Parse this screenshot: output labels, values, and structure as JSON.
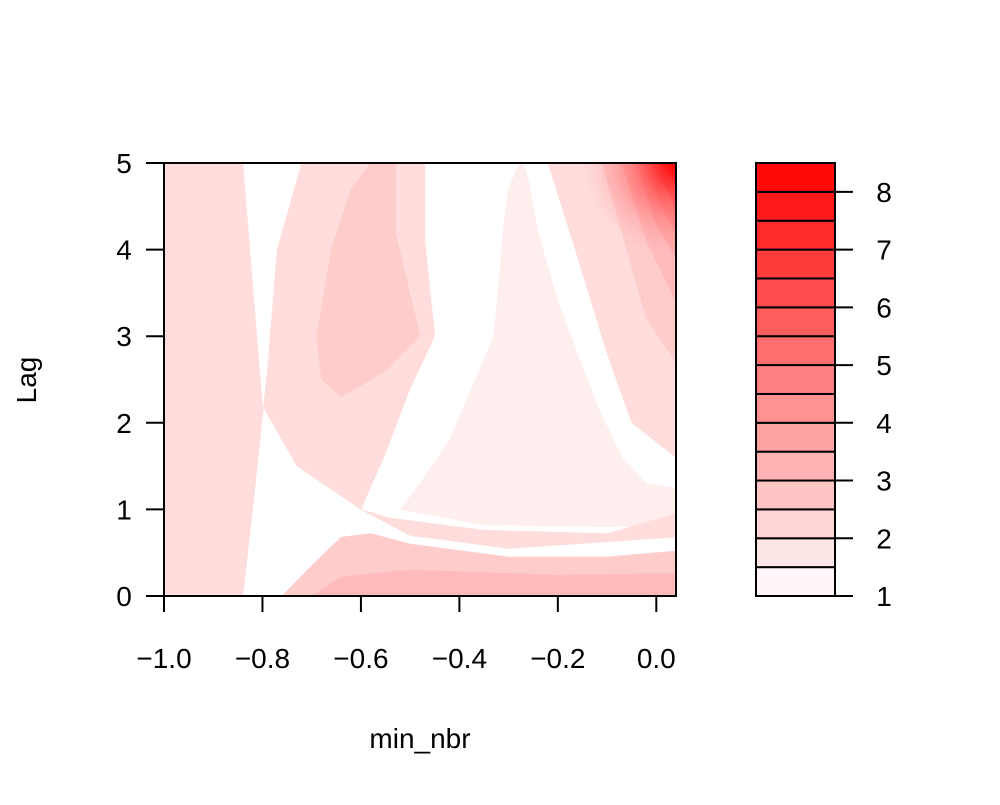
{
  "chart_data": {
    "type": "heatmap",
    "title": "",
    "xlabel": "min_nbr",
    "ylabel": "Lag",
    "xlim": [
      -1.0,
      0.04
    ],
    "ylim": [
      0,
      5
    ],
    "x_ticks": [
      -1.0,
      -0.8,
      -0.6,
      -0.4,
      -0.2,
      0.0
    ],
    "x_tick_labels": [
      "−1.0",
      "−0.8",
      "−0.6",
      "−0.4",
      "−0.2",
      "0.0"
    ],
    "y_ticks": [
      0,
      1,
      2,
      3,
      4,
      5
    ],
    "y_tick_labels": [
      "0",
      "1",
      "2",
      "3",
      "4",
      "5"
    ],
    "legend_position": "right",
    "grid": false,
    "color_levels": [
      1,
      1.5,
      2,
      2.5,
      3,
      3.5,
      4,
      4.5,
      5,
      5.5,
      6,
      6.5,
      7,
      7.5,
      8,
      8.5
    ],
    "colorbar_ticks": [
      1,
      2,
      3,
      4,
      5,
      6,
      7,
      8
    ],
    "colorbar_tick_labels": [
      "1",
      "2",
      "3",
      "4",
      "5",
      "6",
      "7",
      "8"
    ],
    "color_low": "#ffffff",
    "color_high": "#ff0000",
    "contours": [
      {
        "level": 1.5,
        "points": [
          [
            -1.0,
            0.0
          ],
          [
            -0.9,
            0.0
          ],
          [
            -0.89,
            1.5
          ],
          [
            -0.87,
            3.6
          ],
          [
            -0.86,
            5.0
          ],
          [
            -1.0,
            5.0
          ]
        ]
      },
      {
        "level": 1.5,
        "points": [
          [
            -0.52,
            1.0
          ],
          [
            -0.35,
            0.82
          ],
          [
            -0.1,
            0.8
          ],
          [
            0.04,
            0.82
          ],
          [
            0.04,
            1.25
          ],
          [
            -0.02,
            1.3
          ],
          [
            -0.07,
            1.6
          ],
          [
            -0.12,
            2.2
          ],
          [
            -0.16,
            2.8
          ],
          [
            -0.2,
            3.4
          ],
          [
            -0.24,
            4.2
          ],
          [
            -0.26,
            4.8
          ],
          [
            -0.27,
            5.0
          ],
          [
            -0.28,
            4.98
          ],
          [
            -0.3,
            4.7
          ],
          [
            -0.31,
            4.3
          ],
          [
            -0.32,
            3.6
          ],
          [
            -0.33,
            3.0
          ],
          [
            -0.36,
            2.6
          ],
          [
            -0.42,
            1.8
          ],
          [
            -0.48,
            1.3
          ]
        ]
      },
      {
        "level": 2.0,
        "points": [
          [
            -1.0,
            0.0
          ],
          [
            -0.84,
            0.0
          ],
          [
            -0.82,
            1.0
          ],
          [
            -0.79,
            2.6
          ],
          [
            -0.77,
            4.0
          ],
          [
            -0.72,
            5.0
          ],
          [
            -0.47,
            5.0
          ],
          [
            -0.47,
            4.1
          ],
          [
            -0.45,
            3.0
          ],
          [
            -0.5,
            2.4
          ],
          [
            -0.55,
            1.65
          ],
          [
            -0.6,
            1.0
          ],
          [
            -0.5,
            0.7
          ],
          [
            -0.3,
            0.55
          ],
          [
            0.04,
            0.68
          ],
          [
            0.04,
            5.0
          ],
          [
            -0.22,
            5.0
          ],
          [
            -0.17,
            4.1
          ],
          [
            -0.1,
            2.8
          ],
          [
            -0.05,
            2.0
          ],
          [
            0.04,
            1.6
          ],
          [
            0.04,
            0.95
          ],
          [
            -0.1,
            0.72
          ],
          [
            -0.35,
            0.76
          ],
          [
            -0.54,
            0.9
          ],
          [
            -0.6,
            1.0
          ],
          [
            -0.73,
            1.5
          ],
          [
            -0.8,
            2.2
          ],
          [
            -0.82,
            3.6
          ],
          [
            -0.84,
            5.0
          ],
          [
            -1.0,
            5.0
          ]
        ]
      },
      {
        "level": 2.5,
        "points": [
          [
            -0.76,
            0.0
          ],
          [
            -0.7,
            0.35
          ],
          [
            -0.64,
            0.68
          ],
          [
            -0.58,
            0.72
          ],
          [
            -0.5,
            0.6
          ],
          [
            -0.3,
            0.45
          ],
          [
            -0.1,
            0.45
          ],
          [
            0.04,
            0.52
          ],
          [
            0.04,
            0.0
          ]
        ]
      },
      {
        "level": 2.5,
        "points": [
          [
            -0.69,
            3.0
          ],
          [
            -0.66,
            4.0
          ],
          [
            -0.62,
            4.7
          ],
          [
            -0.58,
            5.0
          ],
          [
            -0.53,
            5.0
          ],
          [
            -0.53,
            4.2
          ],
          [
            -0.48,
            3.0
          ],
          [
            -0.55,
            2.6
          ],
          [
            -0.64,
            2.3
          ],
          [
            -0.68,
            2.5
          ]
        ]
      },
      {
        "level": 2.5,
        "points": [
          [
            -0.11,
            5.0
          ],
          [
            -0.06,
            4.0
          ],
          [
            -0.02,
            3.2
          ],
          [
            0.04,
            2.7
          ],
          [
            0.04,
            5.0
          ]
        ]
      },
      {
        "level": 3.0,
        "points": [
          [
            -0.7,
            0.0
          ],
          [
            -0.64,
            0.22
          ],
          [
            -0.5,
            0.3
          ],
          [
            -0.2,
            0.24
          ],
          [
            0.04,
            0.26
          ],
          [
            0.04,
            0.0
          ]
        ]
      },
      {
        "level": 3.0,
        "points": [
          [
            -0.07,
            5.0
          ],
          [
            -0.02,
            4.1
          ],
          [
            0.04,
            3.4
          ],
          [
            0.04,
            5.0
          ]
        ]
      },
      {
        "level": 3.5,
        "points": [
          [
            -0.04,
            5.0
          ],
          [
            0.0,
            4.3
          ],
          [
            0.04,
            3.9
          ],
          [
            0.04,
            5.0
          ]
        ]
      },
      {
        "level": 4.0,
        "points": [
          [
            -0.025,
            5.0
          ],
          [
            0.01,
            4.5
          ],
          [
            0.04,
            4.2
          ],
          [
            0.04,
            5.0
          ]
        ]
      },
      {
        "level": 5.0,
        "points": [
          [
            -0.01,
            5.0
          ],
          [
            0.02,
            4.7
          ],
          [
            0.04,
            4.5
          ],
          [
            0.04,
            5.0
          ]
        ]
      },
      {
        "level": 6.5,
        "points": [
          [
            0.005,
            5.0
          ],
          [
            0.03,
            4.85
          ],
          [
            0.04,
            4.75
          ],
          [
            0.04,
            5.0
          ]
        ]
      },
      {
        "level": 8.0,
        "points": [
          [
            0.025,
            5.0
          ],
          [
            0.04,
            4.92
          ],
          [
            0.04,
            5.0
          ]
        ]
      }
    ]
  }
}
